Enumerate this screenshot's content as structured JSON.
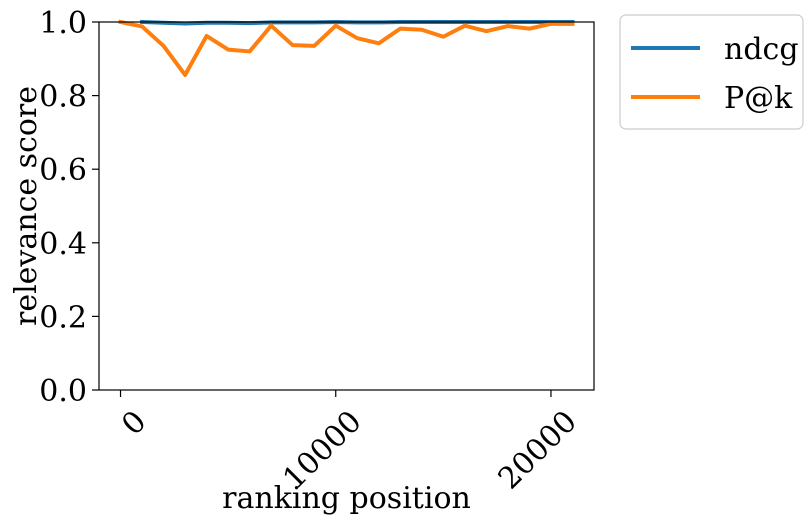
{
  "chart_data": {
    "type": "line",
    "title": "",
    "xlabel": "ranking position",
    "ylabel": "relevance score",
    "xlim": [
      -1000,
      22000
    ],
    "ylim": [
      0.0,
      1.0
    ],
    "x_ticks": [
      0,
      10000,
      20000
    ],
    "x_tick_labels": [
      "0",
      "10000",
      "20000"
    ],
    "x_tick_rotation_deg": 45,
    "y_ticks": [
      0.0,
      0.2,
      0.4,
      0.6,
      0.8,
      1.0
    ],
    "y_tick_labels": [
      "0.0",
      "0.2",
      "0.4",
      "0.6",
      "0.8",
      "1.0"
    ],
    "grid": false,
    "legend_position": "outside-top-right",
    "series": [
      {
        "name": "ndcg",
        "color": "#1f77b4",
        "x": [
          1000,
          2000,
          3000,
          4000,
          5000,
          6000,
          7000,
          8000,
          9000,
          10000,
          11000,
          12000,
          13000,
          14000,
          15000,
          16000,
          17000,
          18000,
          19000,
          20000,
          21000
        ],
        "y": [
          1.0,
          0.998,
          0.996,
          0.998,
          0.998,
          0.997,
          0.999,
          0.999,
          0.999,
          1.0,
          0.999,
          0.999,
          1.0,
          1.0,
          1.0,
          1.0,
          1.0,
          1.0,
          1.0,
          1.0,
          1.0
        ]
      },
      {
        "name": "P@k",
        "color": "#ff7f0e",
        "x": [
          0,
          1000,
          2000,
          3000,
          4000,
          5000,
          6000,
          7000,
          8000,
          9000,
          10000,
          11000,
          12000,
          13000,
          14000,
          15000,
          16000,
          17000,
          18000,
          19000,
          20000,
          21000
        ],
        "y": [
          1.0,
          0.988,
          0.935,
          0.856,
          0.962,
          0.925,
          0.92,
          0.99,
          0.937,
          0.935,
          0.99,
          0.956,
          0.942,
          0.982,
          0.979,
          0.96,
          0.99,
          0.975,
          0.989,
          0.982,
          0.995,
          0.995
        ]
      }
    ]
  }
}
